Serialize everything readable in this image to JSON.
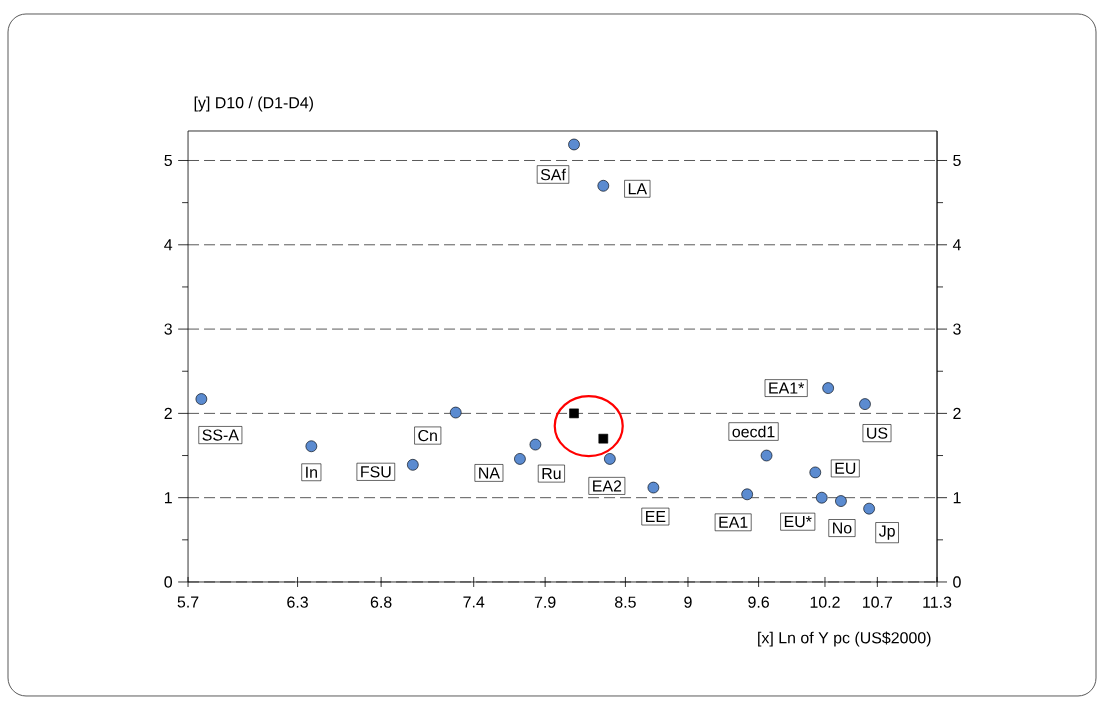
{
  "chart_data": {
    "type": "scatter",
    "xlabel": "[x] Ln of Y pc (US$2000)",
    "ylabel": "[y] D10 / (D1-D4)",
    "log": "x",
    "grid": "y",
    "line_style": "dashed",
    "xlim": [
      5.7,
      11.3
    ],
    "xticks": [
      5.7,
      6.3,
      6.8,
      7.4,
      7.9,
      8.5,
      9,
      9.6,
      10.2,
      10.7,
      11.3
    ],
    "ylim": [
      0,
      5.35
    ],
    "yticks": [
      0,
      {
        "value": 0.5,
        "label": null
      },
      1,
      {
        "value": 1.5,
        "label": null
      },
      2,
      {
        "value": 2.5,
        "label": null
      },
      3,
      {
        "value": 3.5,
        "label": null
      },
      4,
      {
        "value": 4.5,
        "label": null
      },
      5
    ],
    "y2lim": [
      0,
      5.35
    ],
    "y2ticks": [
      0,
      {
        "value": 0.5,
        "label": null
      },
      1,
      {
        "value": 1.5,
        "label": null
      },
      2,
      {
        "value": 2.5,
        "label": null
      },
      3,
      {
        "value": 3.5,
        "label": null
      },
      4,
      {
        "value": 4.5,
        "label": null
      },
      5
    ],
    "series": [
      {
        "color": "#5b8bd0",
        "marker": "circle",
        "x": [
          5.77,
          6.38,
          7.0,
          7.28,
          7.72,
          7.83,
          8.11,
          8.33,
          8.38,
          8.72,
          9.5,
          9.67,
          10.23,
          10.58,
          10.11,
          10.17,
          10.35,
          10.62
        ],
        "values": [
          2.17,
          1.61,
          1.39,
          2.01,
          1.46,
          1.63,
          5.19,
          4.7,
          1.46,
          1.12,
          1.04,
          1.5,
          2.3,
          2.11,
          1.3,
          1.0,
          0.96,
          0.87
        ]
      },
      {
        "color": "#000000",
        "marker": "square",
        "x": [
          8.11,
          8.33
        ],
        "values": [
          2.0,
          1.7
        ]
      }
    ],
    "annotations": [
      {
        "text": "SS-A",
        "x": 5.77,
        "y": 2.17
      },
      {
        "text": "In",
        "x": 6.38,
        "y": 1.61
      },
      {
        "text": "FSU",
        "x": 7.0,
        "y": 1.39
      },
      {
        "text": "Cn",
        "x": 7.28,
        "y": 2.01
      },
      {
        "text": "NA",
        "x": 7.72,
        "y": 1.46
      },
      {
        "text": "Ru",
        "x": 7.83,
        "y": 1.63
      },
      {
        "text": "SAf",
        "x": 8.11,
        "y": 5.19
      },
      {
        "text": "LA",
        "x": 8.33,
        "y": 4.7
      },
      {
        "text": "EA2",
        "x": 8.38,
        "y": 1.46
      },
      {
        "text": "EE",
        "x": 8.72,
        "y": 1.12
      },
      {
        "text": "EA1",
        "x": 9.5,
        "y": 1.04
      },
      {
        "text": "oecd1",
        "x": 9.67,
        "y": 1.5
      },
      {
        "text": "EA1*",
        "x": 10.23,
        "y": 2.3
      },
      {
        "text": "US",
        "x": 10.58,
        "y": 2.11
      },
      {
        "text": "EU",
        "x": 10.11,
        "y": 1.3
      },
      {
        "text": "EU*",
        "x": 10.17,
        "y": 1.0
      },
      {
        "text": "No",
        "x": 10.35,
        "y": 0.96
      },
      {
        "text": "Jp",
        "x": 10.62,
        "y": 0.87
      }
    ]
  }
}
